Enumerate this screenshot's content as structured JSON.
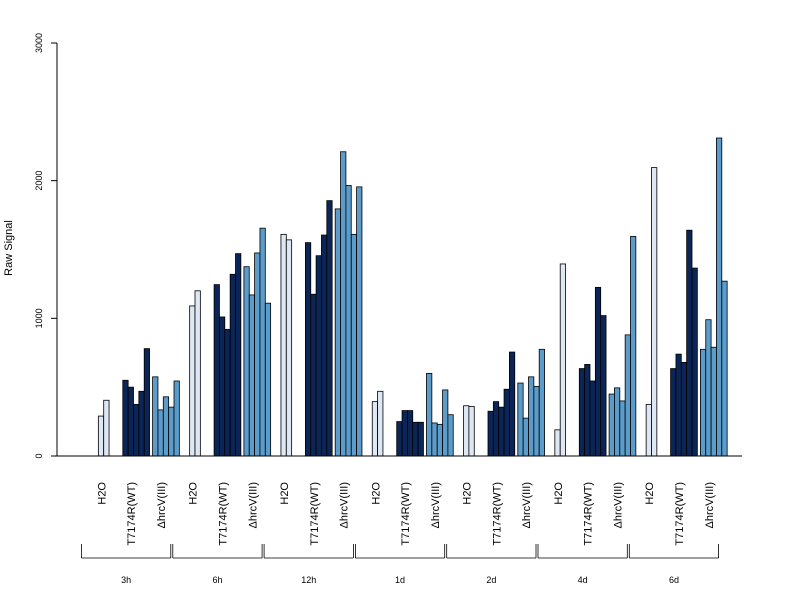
{
  "chart_data": {
    "type": "bar",
    "ylabel": "Raw Signal",
    "ylim": [
      0,
      3000
    ],
    "yticks": [
      0,
      1000,
      2000,
      3000
    ],
    "timepoints": [
      "3h",
      "6h",
      "12h",
      "1d",
      "2d",
      "4d",
      "6d"
    ],
    "groups": [
      "H2O",
      "T7174R(WT)",
      "ΔhrcV(III)"
    ],
    "colors": {
      "H2O": "#dde8f4",
      "T7174R(WT)": "#0c2557",
      "ΔhrcV(III)": "#5b9ccb"
    },
    "bars": [
      {
        "time": "3h",
        "group": "H2O",
        "values": [
          0,
          290,
          405
        ]
      },
      {
        "time": "3h",
        "group": "T7174R(WT)",
        "values": [
          550,
          500,
          375,
          470,
          780
        ]
      },
      {
        "time": "3h",
        "group": "ΔhrcV(III)",
        "values": [
          575,
          335,
          430,
          355,
          545
        ]
      },
      {
        "time": "6h",
        "group": "H2O",
        "values": [
          0,
          1090,
          1200
        ]
      },
      {
        "time": "6h",
        "group": "T7174R(WT)",
        "values": [
          1245,
          1010,
          920,
          1320,
          1470
        ]
      },
      {
        "time": "6h",
        "group": "ΔhrcV(III)",
        "values": [
          1375,
          1170,
          1475,
          1655,
          1110
        ]
      },
      {
        "time": "12h",
        "group": "H2O",
        "values": [
          0,
          1610,
          1570
        ]
      },
      {
        "time": "12h",
        "group": "T7174R(WT)",
        "values": [
          1550,
          1175,
          1455,
          1605,
          1855
        ]
      },
      {
        "time": "12h",
        "group": "ΔhrcV(III)",
        "values": [
          1795,
          2210,
          1965,
          1610,
          1955
        ]
      },
      {
        "time": "1d",
        "group": "H2O",
        "values": [
          0,
          395,
          470
        ]
      },
      {
        "time": "1d",
        "group": "T7174R(WT)",
        "values": [
          250,
          330,
          330,
          245,
          245
        ]
      },
      {
        "time": "1d",
        "group": "ΔhrcV(III)",
        "values": [
          600,
          240,
          230,
          480,
          300
        ]
      },
      {
        "time": "2d",
        "group": "H2O",
        "values": [
          0,
          365,
          360
        ]
      },
      {
        "time": "2d",
        "group": "T7174R(WT)",
        "values": [
          325,
          395,
          355,
          485,
          755
        ]
      },
      {
        "time": "2d",
        "group": "ΔhrcV(III)",
        "values": [
          530,
          275,
          575,
          505,
          775
        ]
      },
      {
        "time": "4d",
        "group": "H2O",
        "values": [
          0,
          190,
          1395
        ]
      },
      {
        "time": "4d",
        "group": "T7174R(WT)",
        "values": [
          635,
          665,
          545,
          1225,
          1020
        ]
      },
      {
        "time": "4d",
        "group": "ΔhrcV(III)",
        "values": [
          450,
          495,
          400,
          880,
          1595
        ]
      },
      {
        "time": "6d",
        "group": "H2O",
        "values": [
          0,
          375,
          2095
        ]
      },
      {
        "time": "6d",
        "group": "T7174R(WT)",
        "values": [
          635,
          740,
          680,
          1640,
          1365
        ]
      },
      {
        "time": "6d",
        "group": "ΔhrcV(III)",
        "values": [
          775,
          990,
          790,
          2310,
          1270
        ]
      }
    ]
  }
}
